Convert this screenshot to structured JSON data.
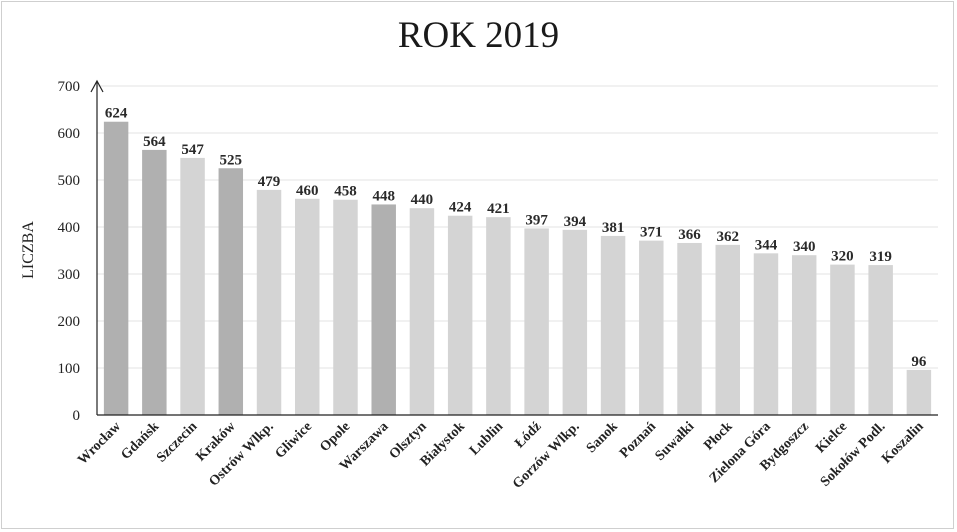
{
  "chart_data": {
    "type": "bar",
    "title": "ROK 2019",
    "xlabel": "",
    "ylabel": "LICZBA",
    "ylim": [
      0,
      700
    ],
    "yticks": [
      0,
      100,
      200,
      300,
      400,
      500,
      600,
      700
    ],
    "grid": true,
    "categories": [
      "Wrocław",
      "Gdańsk",
      "Szczecin",
      "Kraków",
      "Ostrów Wlkp.",
      "Gliwice",
      "Opole",
      "Warszawa",
      "Olsztyn",
      "Białystok",
      "Lublin",
      "Łódź",
      "Gorzów Wlkp.",
      "Sanok",
      "Poznań",
      "Suwałki",
      "Płock",
      "Zielona Góra",
      "Bydgoszcz",
      "Kielce",
      "Sokołów Podl.",
      "Koszalin"
    ],
    "values": [
      624,
      564,
      547,
      525,
      479,
      460,
      458,
      448,
      440,
      424,
      421,
      397,
      394,
      381,
      371,
      366,
      362,
      344,
      340,
      320,
      319,
      96
    ],
    "highlighted": [
      "Wrocław",
      "Gdańsk",
      "Kraków",
      "Warszawa"
    ],
    "colors": {
      "bar": "#d4d4d4",
      "highlight": "#b0b0b0",
      "grid": "#e3e3e3",
      "axis": "#222222"
    }
  }
}
